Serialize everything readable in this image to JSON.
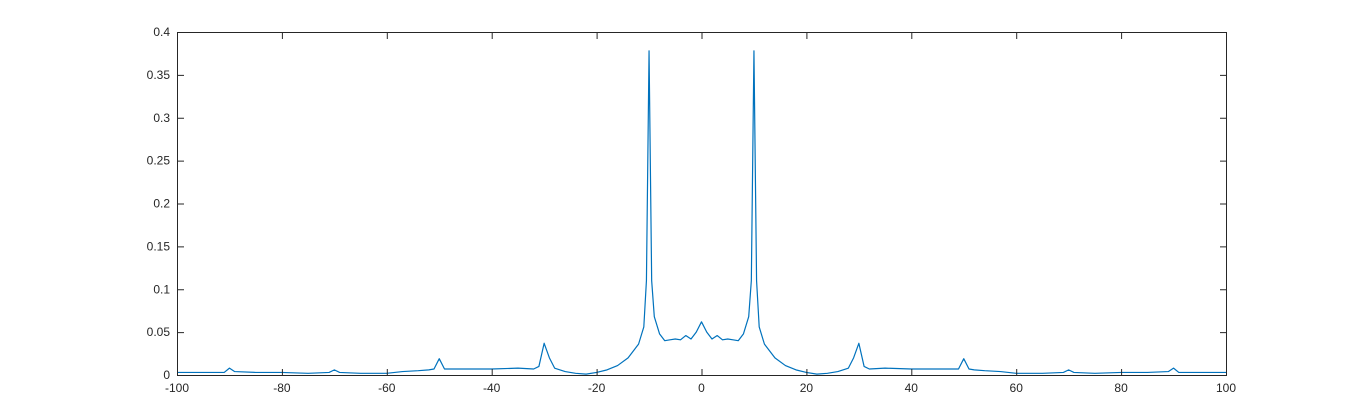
{
  "chart_data": {
    "type": "line",
    "title": "",
    "xlabel": "",
    "ylabel": "",
    "xlim": [
      -100,
      100
    ],
    "ylim": [
      0,
      0.4
    ],
    "grid": false,
    "xticks": [
      -100,
      -80,
      -60,
      -40,
      -20,
      0,
      20,
      40,
      60,
      80,
      100
    ],
    "xtick_labels": [
      "-100",
      "-80",
      "-60",
      "-40",
      "-20",
      "0",
      "20",
      "40",
      "60",
      "80",
      "100"
    ],
    "yticks": [
      0,
      0.05,
      0.1,
      0.15,
      0.2,
      0.25,
      0.3,
      0.35,
      0.4
    ],
    "ytick_labels": [
      "0",
      "0.05",
      "0.1",
      "0.15",
      "0.2",
      "0.25",
      "0.3",
      "0.35",
      "0.4"
    ],
    "series": [
      {
        "color": "#0072bd",
        "points": [
          [
            -100,
            0.003
          ],
          [
            -95,
            0.003
          ],
          [
            -91,
            0.003
          ],
          [
            -90,
            0.008
          ],
          [
            -89,
            0.004
          ],
          [
            -85,
            0.003
          ],
          [
            -80,
            0.003
          ],
          [
            -75,
            0.002
          ],
          [
            -71,
            0.003
          ],
          [
            -70,
            0.006
          ],
          [
            -69,
            0.003
          ],
          [
            -65,
            0.002
          ],
          [
            -60,
            0.002
          ],
          [
            -57,
            0.004
          ],
          [
            -54,
            0.005
          ],
          [
            -52,
            0.006
          ],
          [
            -51,
            0.007
          ],
          [
            -50,
            0.019
          ],
          [
            -49,
            0.007
          ],
          [
            -45,
            0.007
          ],
          [
            -40,
            0.007
          ],
          [
            -35,
            0.008
          ],
          [
            -32,
            0.007
          ],
          [
            -31,
            0.01
          ],
          [
            -30,
            0.037
          ],
          [
            -29,
            0.02
          ],
          [
            -28,
            0.008
          ],
          [
            -26,
            0.004
          ],
          [
            -24,
            0.002
          ],
          [
            -22,
            0.001
          ],
          [
            -20,
            0.003
          ],
          [
            -18,
            0.006
          ],
          [
            -16,
            0.011
          ],
          [
            -14,
            0.02
          ],
          [
            -13,
            0.028
          ],
          [
            -12,
            0.036
          ],
          [
            -11,
            0.056
          ],
          [
            -10.5,
            0.11
          ],
          [
            -10,
            0.378
          ],
          [
            -9.5,
            0.11
          ],
          [
            -9,
            0.068
          ],
          [
            -8,
            0.048
          ],
          [
            -7,
            0.04
          ],
          [
            -6,
            0.041
          ],
          [
            -5,
            0.042
          ],
          [
            -4,
            0.041
          ],
          [
            -3,
            0.046
          ],
          [
            -2,
            0.042
          ],
          [
            -1,
            0.05
          ],
          [
            0,
            0.062
          ],
          [
            1,
            0.05
          ],
          [
            2,
            0.042
          ],
          [
            3,
            0.046
          ],
          [
            4,
            0.041
          ],
          [
            5,
            0.042
          ],
          [
            6,
            0.041
          ],
          [
            7,
            0.04
          ],
          [
            8,
            0.048
          ],
          [
            9,
            0.068
          ],
          [
            9.5,
            0.11
          ],
          [
            10,
            0.378
          ],
          [
            10.5,
            0.11
          ],
          [
            11,
            0.056
          ],
          [
            12,
            0.036
          ],
          [
            13,
            0.028
          ],
          [
            14,
            0.02
          ],
          [
            16,
            0.011
          ],
          [
            18,
            0.006
          ],
          [
            20,
            0.003
          ],
          [
            22,
            0.001
          ],
          [
            24,
            0.002
          ],
          [
            26,
            0.004
          ],
          [
            28,
            0.008
          ],
          [
            29,
            0.02
          ],
          [
            30,
            0.037
          ],
          [
            31,
            0.01
          ],
          [
            32,
            0.007
          ],
          [
            35,
            0.008
          ],
          [
            40,
            0.007
          ],
          [
            45,
            0.007
          ],
          [
            49,
            0.007
          ],
          [
            50,
            0.019
          ],
          [
            51,
            0.007
          ],
          [
            52,
            0.006
          ],
          [
            54,
            0.005
          ],
          [
            57,
            0.004
          ],
          [
            60,
            0.002
          ],
          [
            65,
            0.002
          ],
          [
            69,
            0.003
          ],
          [
            70,
            0.006
          ],
          [
            71,
            0.003
          ],
          [
            75,
            0.002
          ],
          [
            80,
            0.003
          ],
          [
            85,
            0.003
          ],
          [
            89,
            0.004
          ],
          [
            90,
            0.008
          ],
          [
            91,
            0.003
          ],
          [
            95,
            0.003
          ],
          [
            100,
            0.003
          ]
        ]
      }
    ]
  }
}
